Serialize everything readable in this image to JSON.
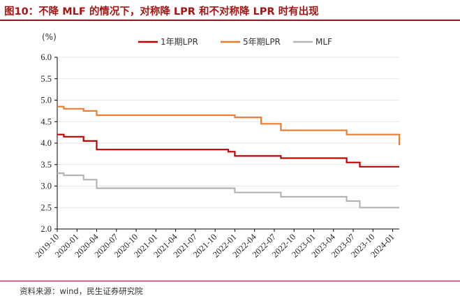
{
  "title": "图10：不降 MLF 的情况下，对称降 LPR 和不对称降 LPR 时有出现",
  "source": "资料来源：wind，民生证券研究院",
  "chart_data": {
    "type": "line",
    "ylabel": "(%)",
    "ylim": [
      2.0,
      6.0
    ],
    "yticks": [
      "2.0",
      "2.5",
      "3.0",
      "3.5",
      "4.0",
      "4.5",
      "5.0",
      "5.5",
      "6.0"
    ],
    "xlim": [
      "2019-10",
      "2024-02"
    ],
    "xticks": [
      "2019-10",
      "2020-01",
      "2020-04",
      "2020-07",
      "2020-10",
      "2021-01",
      "2021-04",
      "2021-07",
      "2021-10",
      "2022-01",
      "2022-04",
      "2022-07",
      "2022-10",
      "2023-01",
      "2023-04",
      "2023-07",
      "2023-10",
      "2024-01"
    ],
    "legend_position": "top",
    "series": [
      {
        "name": "1年期LPR",
        "color": "#c00000",
        "points": [
          [
            "2019-10",
            4.2
          ],
          [
            "2019-11",
            4.15
          ],
          [
            "2020-02",
            4.05
          ],
          [
            "2020-04",
            3.85
          ],
          [
            "2021-12",
            3.8
          ],
          [
            "2022-01",
            3.7
          ],
          [
            "2022-08",
            3.65
          ],
          [
            "2023-06",
            3.55
          ],
          [
            "2023-08",
            3.45
          ],
          [
            "2024-02",
            3.45
          ]
        ]
      },
      {
        "name": "5年期LPR",
        "color": "#ed7d31",
        "points": [
          [
            "2019-10",
            4.85
          ],
          [
            "2019-11",
            4.8
          ],
          [
            "2020-02",
            4.75
          ],
          [
            "2020-04",
            4.65
          ],
          [
            "2022-01",
            4.6
          ],
          [
            "2022-05",
            4.45
          ],
          [
            "2022-08",
            4.3
          ],
          [
            "2023-06",
            4.2
          ],
          [
            "2024-02",
            4.2
          ],
          [
            "2024-02",
            3.95
          ]
        ]
      },
      {
        "name": "MLF",
        "color": "#b4b4b4",
        "points": [
          [
            "2019-10",
            3.3
          ],
          [
            "2019-11",
            3.25
          ],
          [
            "2020-02",
            3.15
          ],
          [
            "2020-04",
            2.95
          ],
          [
            "2022-01",
            2.85
          ],
          [
            "2022-08",
            2.75
          ],
          [
            "2023-06",
            2.65
          ],
          [
            "2023-08",
            2.5
          ],
          [
            "2024-02",
            2.5
          ]
        ]
      }
    ]
  }
}
